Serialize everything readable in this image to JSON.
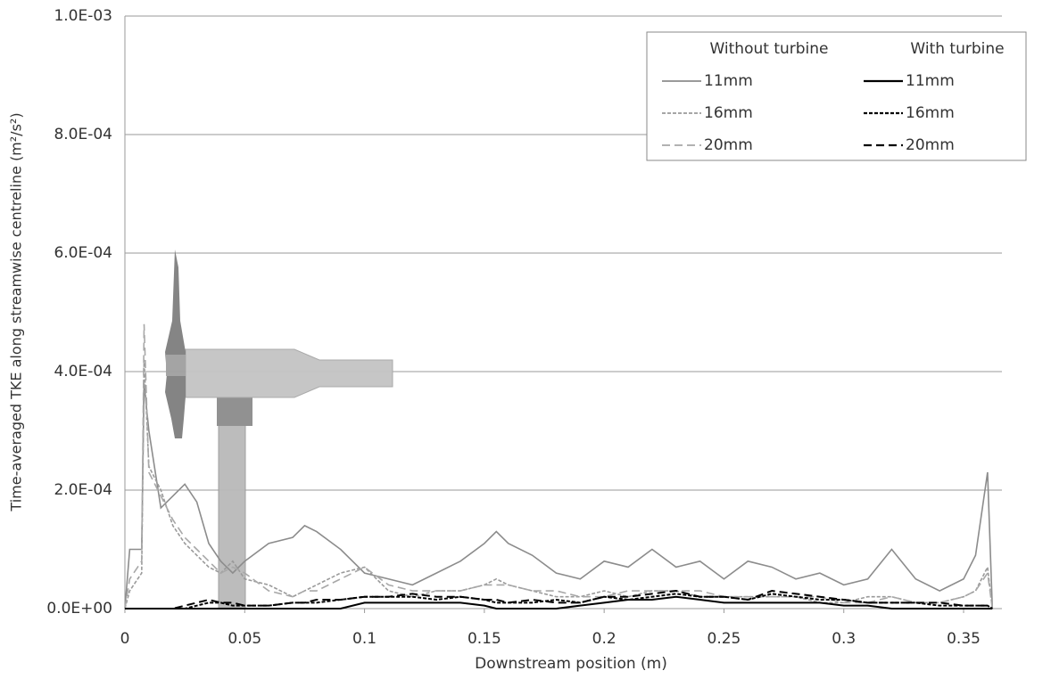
{
  "chart_data": {
    "type": "line",
    "x_label": "Downstream position (m)",
    "y_label": "Time-averaged TKE along streamwise centreline (m²/s²)",
    "legend_titles": [
      "Without turbine",
      "With turbine"
    ],
    "xlim": [
      0,
      0.366
    ],
    "xticks": [
      0,
      0.05,
      0.1,
      0.15,
      0.2,
      0.25,
      0.3,
      0.35
    ],
    "ylim": [
      0,
      0.001
    ],
    "yticks": [
      {
        "value": 0,
        "label": "0.0E+00"
      },
      {
        "value": 0.0002,
        "label": "2.0E-04"
      },
      {
        "value": 0.0004,
        "label": "4.0E-04"
      },
      {
        "value": 0.0006,
        "label": "6.0E-04"
      },
      {
        "value": 0.0008,
        "label": "8.0E-04"
      },
      {
        "value": 0.001,
        "label": "1.0E-03"
      }
    ],
    "grid": true,
    "x": [
      0,
      0.002,
      0.007,
      0.008,
      0.01,
      0.015,
      0.02,
      0.025,
      0.03,
      0.035,
      0.04,
      0.045,
      0.05,
      0.06,
      0.07,
      0.075,
      0.08,
      0.09,
      0.1,
      0.11,
      0.12,
      0.13,
      0.14,
      0.15,
      0.155,
      0.16,
      0.17,
      0.18,
      0.19,
      0.2,
      0.21,
      0.22,
      0.23,
      0.24,
      0.25,
      0.26,
      0.27,
      0.28,
      0.29,
      0.3,
      0.31,
      0.32,
      0.33,
      0.34,
      0.35,
      0.355,
      0.36,
      0.362
    ],
    "series": [
      {
        "name": "11mm",
        "group": 0,
        "color": "#8c8c8c",
        "dash": "solid",
        "values": [
          0,
          0.0001,
          0.0001,
          0.00038,
          0.0003,
          0.00017,
          0.00019,
          0.00021,
          0.00018,
          0.00011,
          8e-05,
          6e-05,
          8e-05,
          0.00011,
          0.00012,
          0.00014,
          0.00013,
          0.0001,
          6e-05,
          5e-05,
          4e-05,
          6e-05,
          8e-05,
          0.00011,
          0.00013,
          0.00011,
          9e-05,
          6e-05,
          5e-05,
          8e-05,
          7e-05,
          0.0001,
          7e-05,
          8e-05,
          5e-05,
          8e-05,
          7e-05,
          5e-05,
          6e-05,
          4e-05,
          5e-05,
          0.0001,
          5e-05,
          3e-05,
          5e-05,
          9e-05,
          0.00023,
          0
        ]
      },
      {
        "name": "16mm",
        "group": 0,
        "color": "#9a9a9a",
        "dash": "dotted",
        "values": [
          0,
          3e-05,
          6e-05,
          0.00042,
          0.00024,
          0.0002,
          0.00014,
          0.00011,
          9e-05,
          7e-05,
          6e-05,
          8e-05,
          5e-05,
          4e-05,
          2e-05,
          3e-05,
          4e-05,
          6e-05,
          7e-05,
          3e-05,
          2e-05,
          3e-05,
          3e-05,
          4e-05,
          5e-05,
          4e-05,
          3e-05,
          2e-05,
          2e-05,
          3e-05,
          2e-05,
          3e-05,
          3e-05,
          2e-05,
          2e-05,
          2e-05,
          2e-05,
          2e-05,
          1e-05,
          1e-05,
          2e-05,
          2e-05,
          1e-05,
          1e-05,
          2e-05,
          3e-05,
          7e-05,
          0
        ]
      },
      {
        "name": "20mm",
        "group": 0,
        "color": "#a8a8a8",
        "dash": "dashed",
        "values": [
          0,
          5e-05,
          8e-05,
          0.00048,
          0.00023,
          0.00019,
          0.00015,
          0.00012,
          0.0001,
          8e-05,
          6e-05,
          7e-05,
          6e-05,
          3e-05,
          2e-05,
          3e-05,
          3e-05,
          5e-05,
          7e-05,
          4e-05,
          3e-05,
          3e-05,
          3e-05,
          4e-05,
          4e-05,
          4e-05,
          3e-05,
          3e-05,
          2e-05,
          2e-05,
          3e-05,
          3e-05,
          3e-05,
          3e-05,
          2e-05,
          2e-05,
          2e-05,
          2e-05,
          2e-05,
          1e-05,
          1e-05,
          2e-05,
          1e-05,
          1e-05,
          2e-05,
          3e-05,
          6e-05,
          0
        ]
      },
      {
        "name": "11mm",
        "group": 1,
        "color": "#000000",
        "dash": "solid",
        "values": [
          0,
          0,
          0,
          0,
          0,
          0,
          0,
          0,
          0,
          0,
          0,
          0,
          0,
          0,
          0,
          0,
          0,
          0,
          1e-05,
          1e-05,
          1e-05,
          1e-05,
          1e-05,
          5e-06,
          0,
          0,
          0,
          0,
          5e-06,
          1e-05,
          1.5e-05,
          1.5e-05,
          2e-05,
          1.5e-05,
          1e-05,
          1e-05,
          1e-05,
          1e-05,
          1e-05,
          5e-06,
          5e-06,
          0,
          0,
          0,
          0,
          0,
          0,
          0
        ]
      },
      {
        "name": "16mm",
        "group": 1,
        "color": "#000000",
        "dash": "dotted",
        "values": [
          0,
          0,
          0,
          0,
          0,
          0,
          0,
          0,
          5e-06,
          1e-05,
          1e-05,
          5e-06,
          5e-06,
          5e-06,
          1e-05,
          1e-05,
          1e-05,
          1.5e-05,
          2e-05,
          2e-05,
          2e-05,
          1.5e-05,
          2e-05,
          1.5e-05,
          1e-05,
          1e-05,
          1e-05,
          1.5e-05,
          1e-05,
          2e-05,
          1.5e-05,
          2e-05,
          2.5e-05,
          2e-05,
          2e-05,
          1.5e-05,
          2.5e-05,
          2e-05,
          1.5e-05,
          1.5e-05,
          1e-05,
          1e-05,
          1e-05,
          5e-06,
          5e-06,
          5e-06,
          5e-06,
          0
        ]
      },
      {
        "name": "20mm",
        "group": 1,
        "color": "#000000",
        "dash": "dashed",
        "values": [
          0,
          0,
          0,
          0,
          0,
          0,
          0,
          5e-06,
          1e-05,
          1.5e-05,
          1e-05,
          1e-05,
          5e-06,
          5e-06,
          1e-05,
          1e-05,
          1.5e-05,
          1.5e-05,
          2e-05,
          2e-05,
          2.5e-05,
          2e-05,
          2e-05,
          1.5e-05,
          1.5e-05,
          1e-05,
          1.5e-05,
          1e-05,
          1e-05,
          2e-05,
          2e-05,
          2.5e-05,
          3e-05,
          2e-05,
          2e-05,
          1.5e-05,
          3e-05,
          2.5e-05,
          2e-05,
          1.5e-05,
          1e-05,
          1e-05,
          1e-05,
          1e-05,
          5e-06,
          5e-06,
          5e-06,
          0
        ]
      }
    ]
  }
}
